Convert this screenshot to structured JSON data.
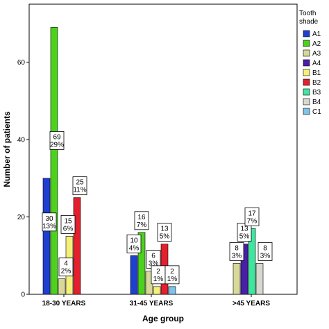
{
  "chart_data": {
    "type": "bar",
    "xlabel": "Age group",
    "ylabel": "Number of patients",
    "ylim": [
      0,
      75
    ],
    "yticks": [
      0,
      20,
      40,
      60
    ],
    "categories": [
      "18-30 YEARS",
      "31-45 YEARS",
      ">45 YEARS"
    ],
    "legend_title": "Tooth shade",
    "legend_position": "right",
    "series": [
      {
        "name": "A1",
        "color": "#1f3fd0",
        "values": [
          30,
          10,
          0
        ]
      },
      {
        "name": "A2",
        "color": "#4cd21c",
        "values": [
          69,
          16,
          0
        ]
      },
      {
        "name": "A3",
        "color": "#d8d89a",
        "values": [
          4,
          6,
          8
        ]
      },
      {
        "name": "A4",
        "color": "#4a1fa8",
        "values": [
          0,
          0,
          13
        ]
      },
      {
        "name": "B1",
        "color": "#f5f07a",
        "values": [
          15,
          2,
          0
        ]
      },
      {
        "name": "B2",
        "color": "#e2202e",
        "values": [
          25,
          13,
          0
        ]
      },
      {
        "name": "B3",
        "color": "#3ee6a0",
        "values": [
          0,
          0,
          17
        ]
      },
      {
        "name": "B4",
        "color": "#d8d8d0",
        "values": [
          0,
          0,
          8
        ]
      },
      {
        "name": "C1",
        "color": "#7fc2ea",
        "values": [
          0,
          2,
          0
        ]
      }
    ],
    "data_labels": [
      {
        "series": "A1",
        "category": "18-30 YEARS",
        "count": "30",
        "percent": "13%"
      },
      {
        "series": "A2",
        "category": "18-30 YEARS",
        "count": "69",
        "percent": "29%"
      },
      {
        "series": "A3",
        "category": "18-30 YEARS",
        "count": "4",
        "percent": "2%"
      },
      {
        "series": "B1",
        "category": "18-30 YEARS",
        "count": "15",
        "percent": "6%"
      },
      {
        "series": "B2",
        "category": "18-30 YEARS",
        "count": "25",
        "percent": "11%"
      },
      {
        "series": "A1",
        "category": "31-45 YEARS",
        "count": "10",
        "percent": "4%"
      },
      {
        "series": "A2",
        "category": "31-45 YEARS",
        "count": "16",
        "percent": "7%"
      },
      {
        "series": "A3",
        "category": "31-45 YEARS",
        "count": "6",
        "percent": "3%"
      },
      {
        "series": "B1",
        "category": "31-45 YEARS",
        "count": "2",
        "percent": "1%"
      },
      {
        "series": "B2",
        "category": "31-45 YEARS",
        "count": "13",
        "percent": "5%"
      },
      {
        "series": "C1",
        "category": "31-45 YEARS",
        "count": "2",
        "percent": "1%"
      },
      {
        "series": "A3",
        "category": ">45 YEARS",
        "count": "8",
        "percent": "3%"
      },
      {
        "series": "A4",
        "category": ">45 YEARS",
        "count": "13",
        "percent": "5%"
      },
      {
        "series": "B3",
        "category": ">45 YEARS",
        "count": "17",
        "percent": "7%"
      },
      {
        "series": "B4",
        "category": ">45 YEARS",
        "count": "8",
        "percent": "3%"
      }
    ]
  }
}
